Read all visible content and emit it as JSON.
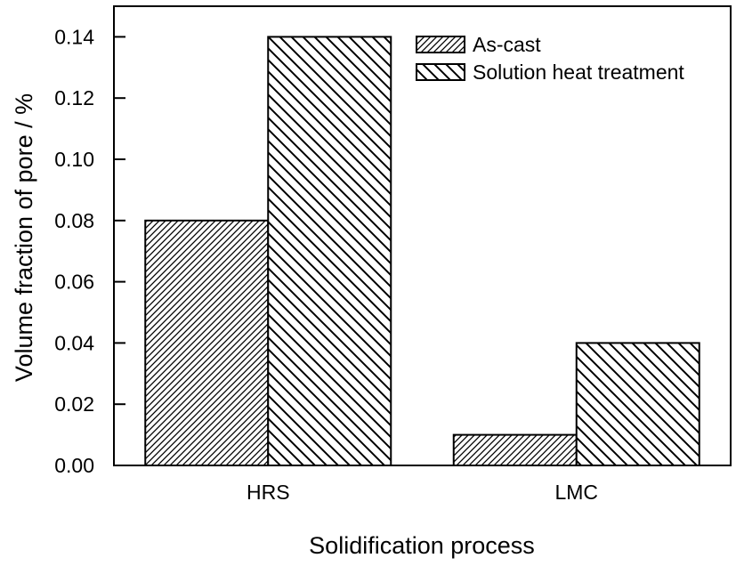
{
  "chart_data": {
    "type": "bar",
    "title": "",
    "xlabel": "Solidification process",
    "ylabel": "Volume fraction of pore / %",
    "categories": [
      "HRS",
      "LMC"
    ],
    "series": [
      {
        "name": "As-cast",
        "hatch": "forward-diagonal-fine",
        "values": [
          0.08,
          0.01
        ]
      },
      {
        "name": "Solution heat treatment",
        "hatch": "backward-diagonal-coarse",
        "values": [
          0.14,
          0.04
        ]
      }
    ],
    "ylim": [
      0,
      0.15
    ],
    "ytick_step": 0.02,
    "ytick_labels": [
      "0.00",
      "0.02",
      "0.04",
      "0.06",
      "0.08",
      "0.10",
      "0.12",
      "0.14"
    ],
    "grid": false,
    "legend_position": "top-right-inside",
    "colors": {
      "background": "#ffffff",
      "axis": "#000000",
      "hatch": "#000000",
      "bar_fill": "#ffffff",
      "text": "#000000"
    }
  }
}
